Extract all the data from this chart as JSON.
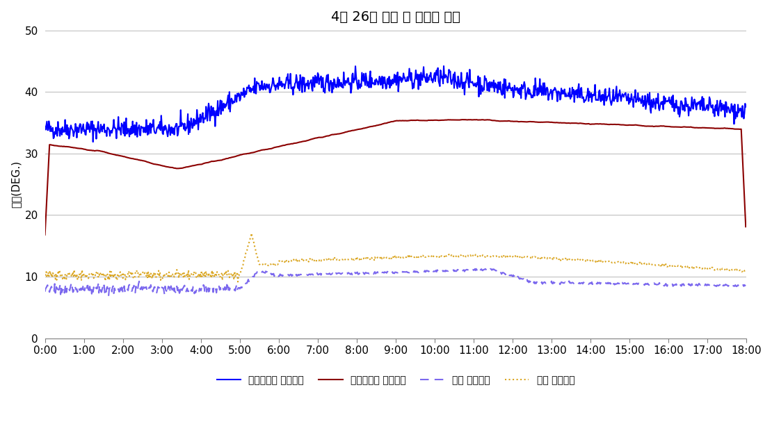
{
  "title": "4월 26일 냉수 및 냉각수 온도",
  "ylabel": "온도(DEG.)",
  "ylim": [
    0,
    50
  ],
  "yticks": [
    0,
    10,
    20,
    30,
    40,
    50
  ],
  "xlim": [
    0,
    1080
  ],
  "xtick_labels": [
    "0:00",
    "1:00",
    "2:00",
    "3:00",
    "4:00",
    "5:00",
    "6:00",
    "7:00",
    "8:00",
    "9:00",
    "10:00",
    "11:00",
    "12:00",
    "13:00",
    "14:00",
    "15:00",
    "16:00",
    "17:00",
    "18:00"
  ],
  "xtick_positions": [
    0,
    60,
    120,
    180,
    240,
    300,
    360,
    420,
    480,
    540,
    600,
    660,
    720,
    780,
    840,
    900,
    960,
    1020,
    1080
  ],
  "legend": [
    {
      "label": "드라이쿨러 출수온도",
      "color": "#0000FF",
      "linestyle": "-",
      "linewidth": 1.5
    },
    {
      "label": "드라이쿨러 입수온도",
      "color": "#8B0000",
      "linestyle": "-",
      "linewidth": 1.5
    },
    {
      "label": "칠러 출수온도",
      "color": "#7B68EE",
      "linestyle": "--",
      "linewidth": 1.5
    },
    {
      "label": "칠러 입수온도",
      "color": "#DAA520",
      "linestyle": ":",
      "linewidth": 1.5
    }
  ],
  "background_color": "#FFFFFF",
  "grid_color": "#C0C0C0",
  "title_fontsize": 14,
  "axis_fontsize": 11
}
